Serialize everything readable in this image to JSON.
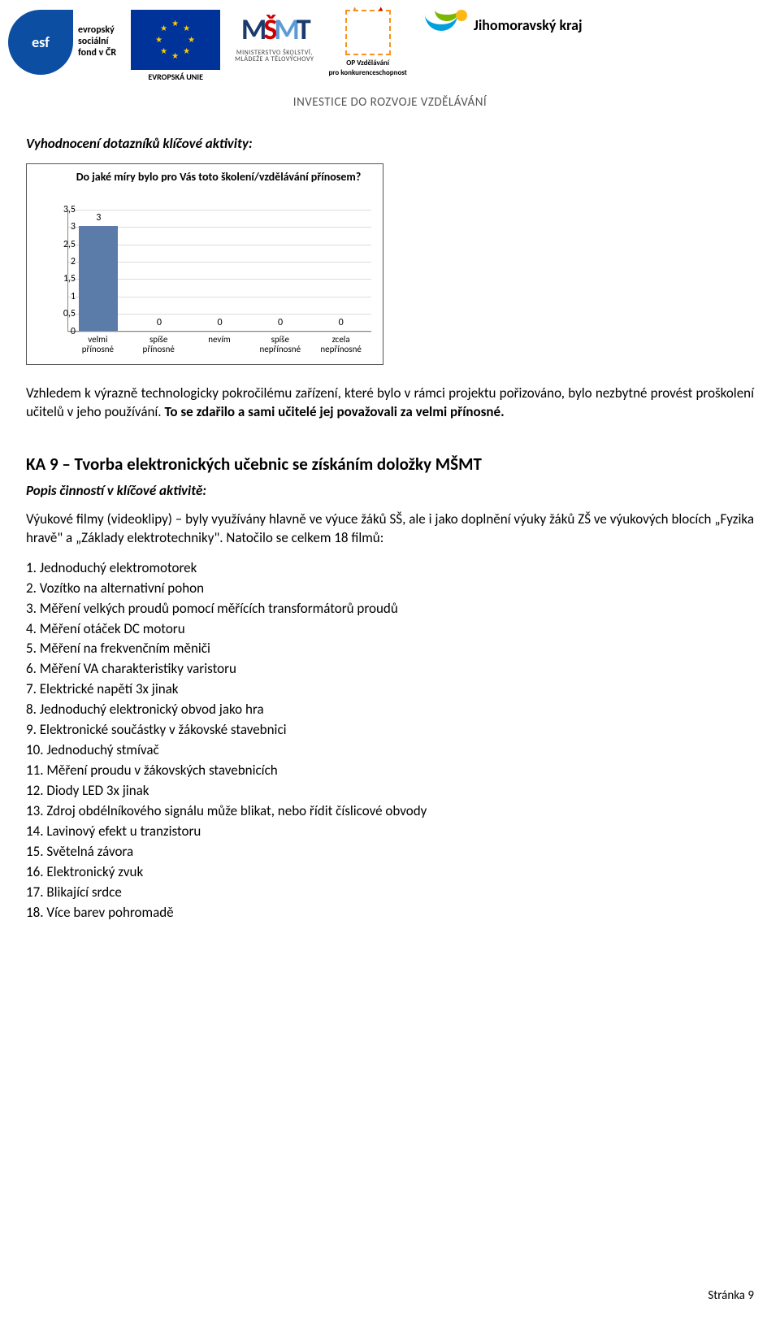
{
  "header": {
    "esf_initials": "esf",
    "esf_text_line1": "evropský",
    "esf_text_line2": "sociální",
    "esf_text_line3": "fond v ČR",
    "eu_label": "EVROPSKÁ UNIE",
    "msmt_letters": "MŠMT",
    "msmt_sub1": "MINISTERSTVO ŠKOLSTVÍ,",
    "msmt_sub2": "MLÁDEŽE A TĚLOVÝCHOVY",
    "op_line1": "OP Vzdělávání",
    "op_line2": "pro konkurenceschopnost",
    "jmk_text": "Jihomoravský kraj",
    "invest_line": "INVESTICE DO ROZVOJE VZDĚLÁVÁNÍ"
  },
  "section_title": "Vyhodnocení dotazníků klíčové aktivity:",
  "chart": {
    "type": "bar",
    "title": "Do jaké míry bylo pro Vás toto školení/vzdělávání přínosem?",
    "categories": [
      "velmi přínosné",
      "spíše přínosné",
      "nevím",
      "spíše nepřínosné",
      "zcela nepřínosné"
    ],
    "values": [
      3,
      0,
      0,
      0,
      0
    ],
    "ymax": 3.5,
    "ytick_step": 0.5,
    "yticks": [
      "0",
      "0,5",
      "1",
      "1,5",
      "2",
      "2,5",
      "3",
      "3,5"
    ],
    "bar_color": "#5b7ba8",
    "grid_color": "#dddddd",
    "axis_color": "#888888",
    "background_color": "#ffffff",
    "title_fontsize": 14,
    "axis_label_fontsize": 11
  },
  "para1_plain": "Vzhledem k výrazně technologicky pokročilému zařízení, které bylo v rámci projektu pořizováno, bylo nezbytné provést proškolení učitelů v jeho používání. ",
  "para1_bold": "To se zdařilo a sami učitelé jej považovali za velmi přínosné.",
  "ka9": {
    "title": "KA 9 – Tvorba elektronických učebnic se získáním doložky MŠMT",
    "popis_label": "Popis činností v klíčové aktivitě:",
    "intro": "Výukové filmy (videoklipy) – byly využívány hlavně ve výuce žáků SŠ, ale i jako doplnění výuky žáků ZŠ ve výukových blocích „Fyzika hravě\" a „Základy elektrotechniky\". Natočilo se celkem 18 filmů:",
    "films": [
      "1. Jednoduchý elektromotorek",
      "2. Vozítko na alternativní pohon",
      "3. Měření velkých proudů pomocí měřících transformátorů proudů",
      "4. Měření otáček DC motoru",
      "5. Měření na frekvenčním měniči",
      "6. Měření VA charakteristiky varistoru",
      "7. Elektrické napětí 3x jinak",
      "8. Jednoduchý elektronický obvod jako hra",
      "9. Elektronické součástky v žákovské stavebnici",
      "10. Jednoduchý stmívač",
      "11. Měření proudu v žákovských stavebnicích",
      "12. Diody LED 3x jinak",
      "13. Zdroj obdélníkového signálu může blikat, nebo řídit číslicové obvody",
      "14. Lavinový efekt u tranzistoru",
      "15. Světelná závora",
      "16. Elektronický zvuk",
      "17. Blikající srdce",
      "18. Více barev pohromadě"
    ]
  },
  "footer": "Stránka 9"
}
